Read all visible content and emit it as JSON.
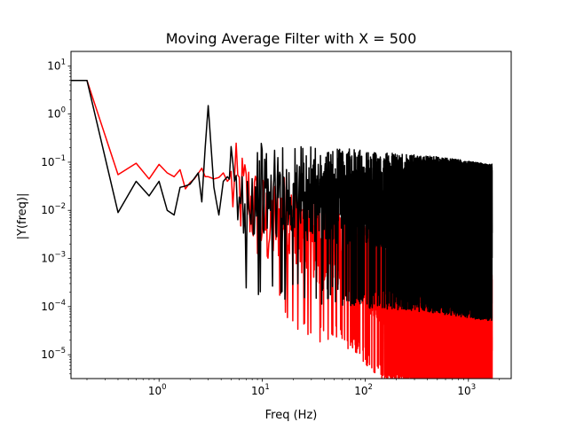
{
  "chart_data": {
    "type": "line",
    "title": "Moving Average Filter with X = 500",
    "xlabel": "Freq (Hz)",
    "ylabel": "|Y(freq)|",
    "xscale": "log",
    "yscale": "log",
    "xlim": [
      0.14,
      2600
    ],
    "ylim": [
      3.2e-06,
      20
    ],
    "grid": false,
    "legend": "none",
    "x_ticks": [
      {
        "value": 1,
        "base": "10",
        "exp": "0"
      },
      {
        "value": 10,
        "base": "10",
        "exp": "1"
      },
      {
        "value": 100,
        "base": "10",
        "exp": "2"
      },
      {
        "value": 1000,
        "base": "10",
        "exp": "3"
      }
    ],
    "y_ticks": [
      {
        "value": 1e-05,
        "base": "10",
        "exp": "−5"
      },
      {
        "value": 0.0001,
        "base": "10",
        "exp": "−4"
      },
      {
        "value": 0.001,
        "base": "10",
        "exp": "−3"
      },
      {
        "value": 0.01,
        "base": "10",
        "exp": "−2"
      },
      {
        "value": 0.1,
        "base": "10",
        "exp": "−1"
      },
      {
        "value": 1,
        "base": "10",
        "exp": "0"
      },
      {
        "value": 10,
        "base": "10",
        "exp": "1"
      }
    ],
    "series": [
      {
        "color": "#ff0000",
        "points": [
          [
            0.1,
            5
          ],
          [
            0.2,
            5
          ],
          [
            0.4,
            0.055
          ],
          [
            0.6,
            0.095
          ],
          [
            0.8,
            0.045
          ],
          [
            1.0,
            0.09
          ],
          [
            1.2,
            0.06
          ],
          [
            1.4,
            0.05
          ],
          [
            1.6,
            0.07
          ],
          [
            1.8,
            0.028
          ],
          [
            2.0,
            0.038
          ],
          [
            2.2,
            0.045
          ],
          [
            2.6,
            0.075
          ],
          [
            2.8,
            0.05
          ],
          [
            3.0,
            0.05
          ],
          [
            3.4,
            0.045
          ],
          [
            3.8,
            0.048
          ],
          [
            4.2,
            0.06
          ],
          [
            4.6,
            0.04
          ],
          [
            5,
            0.05
          ],
          [
            6,
            0.035
          ],
          [
            7,
            0.03
          ],
          [
            8,
            0.02
          ],
          [
            9,
            0.012
          ],
          [
            10,
            0.01
          ],
          [
            12,
            0.007
          ],
          [
            15,
            0.012
          ],
          [
            20,
            0.006
          ],
          [
            25,
            0.003
          ],
          [
            30,
            0.004
          ],
          [
            40,
            0.002
          ],
          [
            50,
            0.003
          ],
          [
            60,
            0.0022
          ],
          [
            80,
            0.0015
          ],
          [
            100,
            0.0009
          ],
          [
            130,
            0.0005
          ],
          [
            160,
            0.0004
          ],
          [
            200,
            0.0003
          ],
          [
            300,
            0.00022
          ],
          [
            400,
            0.00018
          ],
          [
            600,
            0.00014
          ],
          [
            800,
            0.0001
          ],
          [
            1000,
            9e-05
          ],
          [
            1300,
            8e-05
          ],
          [
            1600,
            8e-05
          ]
        ],
        "noise_amp": 2.0,
        "dips": [
          [
            18,
            0.0015
          ],
          [
            35,
            0.0007
          ],
          [
            58,
            0.0003
          ],
          [
            95,
            0.0003
          ],
          [
            175,
            6e-05
          ],
          [
            260,
            3e-05
          ],
          [
            320,
            1.2e-05
          ],
          [
            480,
            2.5e-05
          ],
          [
            650,
            1.4e-05
          ],
          [
            850,
            1.8e-05
          ],
          [
            1050,
            4.5e-06
          ],
          [
            1180,
            3e-06
          ],
          [
            1350,
            9e-06
          ],
          [
            1520,
            1.2e-05
          ]
        ]
      },
      {
        "color": "#000000",
        "points": [
          [
            0.1,
            5
          ],
          [
            0.2,
            5
          ],
          [
            0.4,
            0.009
          ],
          [
            0.6,
            0.04
          ],
          [
            0.8,
            0.02
          ],
          [
            1.0,
            0.04
          ],
          [
            1.2,
            0.01
          ],
          [
            1.4,
            0.008
          ],
          [
            1.6,
            0.03
          ],
          [
            1.8,
            0.032
          ],
          [
            2.0,
            0.035
          ],
          [
            2.4,
            0.06
          ],
          [
            2.6,
            0.015
          ],
          [
            2.8,
            0.2
          ],
          [
            3.0,
            1.5
          ],
          [
            3.2,
            0.2
          ],
          [
            3.4,
            0.03
          ],
          [
            3.8,
            0.008
          ],
          [
            4.2,
            0.04
          ],
          [
            4.6,
            0.05
          ],
          [
            5,
            0.04
          ],
          [
            6,
            0.02
          ],
          [
            7,
            0.035
          ],
          [
            8,
            0.03
          ],
          [
            10,
            0.035
          ],
          [
            15,
            0.03
          ],
          [
            20,
            0.03
          ],
          [
            30,
            0.028
          ],
          [
            50,
            0.025
          ],
          [
            80,
            0.025
          ],
          [
            100,
            0.022
          ],
          [
            200,
            0.02
          ],
          [
            400,
            0.018
          ],
          [
            800,
            0.015
          ],
          [
            1200,
            0.013
          ],
          [
            1700,
            0.012
          ]
        ],
        "noise_amp": 2.2,
        "dips": [
          [
            7.5,
            0.008
          ],
          [
            12,
            0.01
          ],
          [
            40,
            0.004
          ],
          [
            150,
            0.002
          ],
          [
            220,
            0.0002
          ],
          [
            350,
            0.001
          ],
          [
            600,
            0.001
          ],
          [
            900,
            0.0008
          ],
          [
            1250,
            0.0003
          ],
          [
            1400,
            0.00015
          ],
          [
            1600,
            0.003
          ]
        ]
      }
    ]
  }
}
